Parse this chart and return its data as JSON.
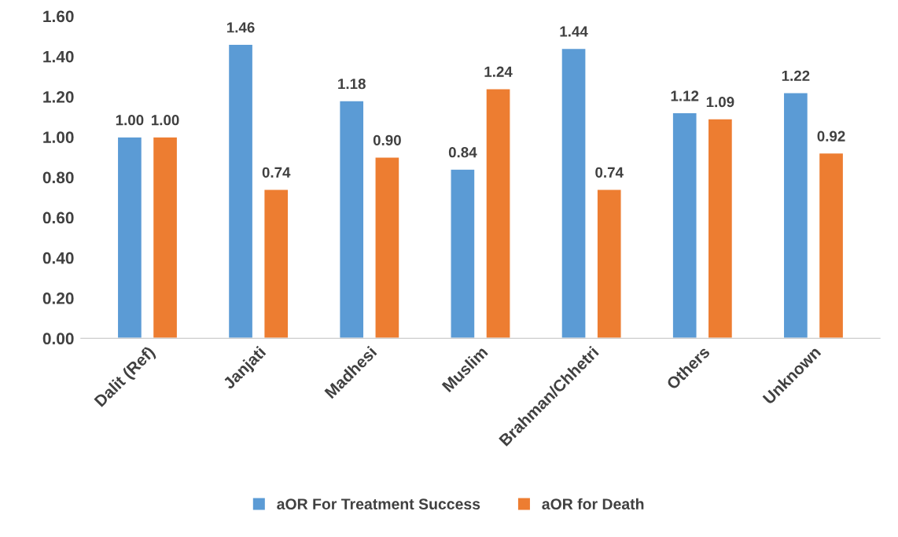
{
  "chart_data": {
    "type": "bar",
    "categories": [
      "Dalit (Ref)",
      "Janjati",
      "Madhesi",
      "Muslim",
      "Brahman/Chhetri",
      "Others",
      "Unknown"
    ],
    "series": [
      {
        "name": "aOR For Treatment Success",
        "color": "#5b9bd5",
        "values": [
          1.0,
          1.46,
          1.18,
          0.84,
          1.44,
          1.12,
          1.22
        ],
        "value_labels": [
          "1.00",
          "1.46",
          "1.18",
          "0.84",
          "1.44",
          "1.12",
          "1.22"
        ]
      },
      {
        "name": "aOR for Death",
        "color": "#ed7d31",
        "values": [
          1.0,
          0.74,
          0.9,
          1.24,
          0.74,
          1.09,
          0.92
        ],
        "value_labels": [
          "1.00",
          "0.74",
          "0.90",
          "1.24",
          "0.74",
          "1.09",
          "0.92"
        ]
      }
    ],
    "ylim": [
      0,
      1.6
    ],
    "yticks": [
      {
        "value": 0,
        "label": "0.00"
      },
      {
        "value": 0.2,
        "label": "0.20"
      },
      {
        "value": 0.4,
        "label": "0.40"
      },
      {
        "value": 0.6,
        "label": "0.60"
      },
      {
        "value": 0.8,
        "label": "0.80"
      },
      {
        "value": 1.0,
        "label": "1.00"
      },
      {
        "value": 1.2,
        "label": "1.20"
      },
      {
        "value": 1.4,
        "label": "1.40"
      },
      {
        "value": 1.6,
        "label": "1.60"
      }
    ],
    "grid": false,
    "legend": "bottom"
  }
}
